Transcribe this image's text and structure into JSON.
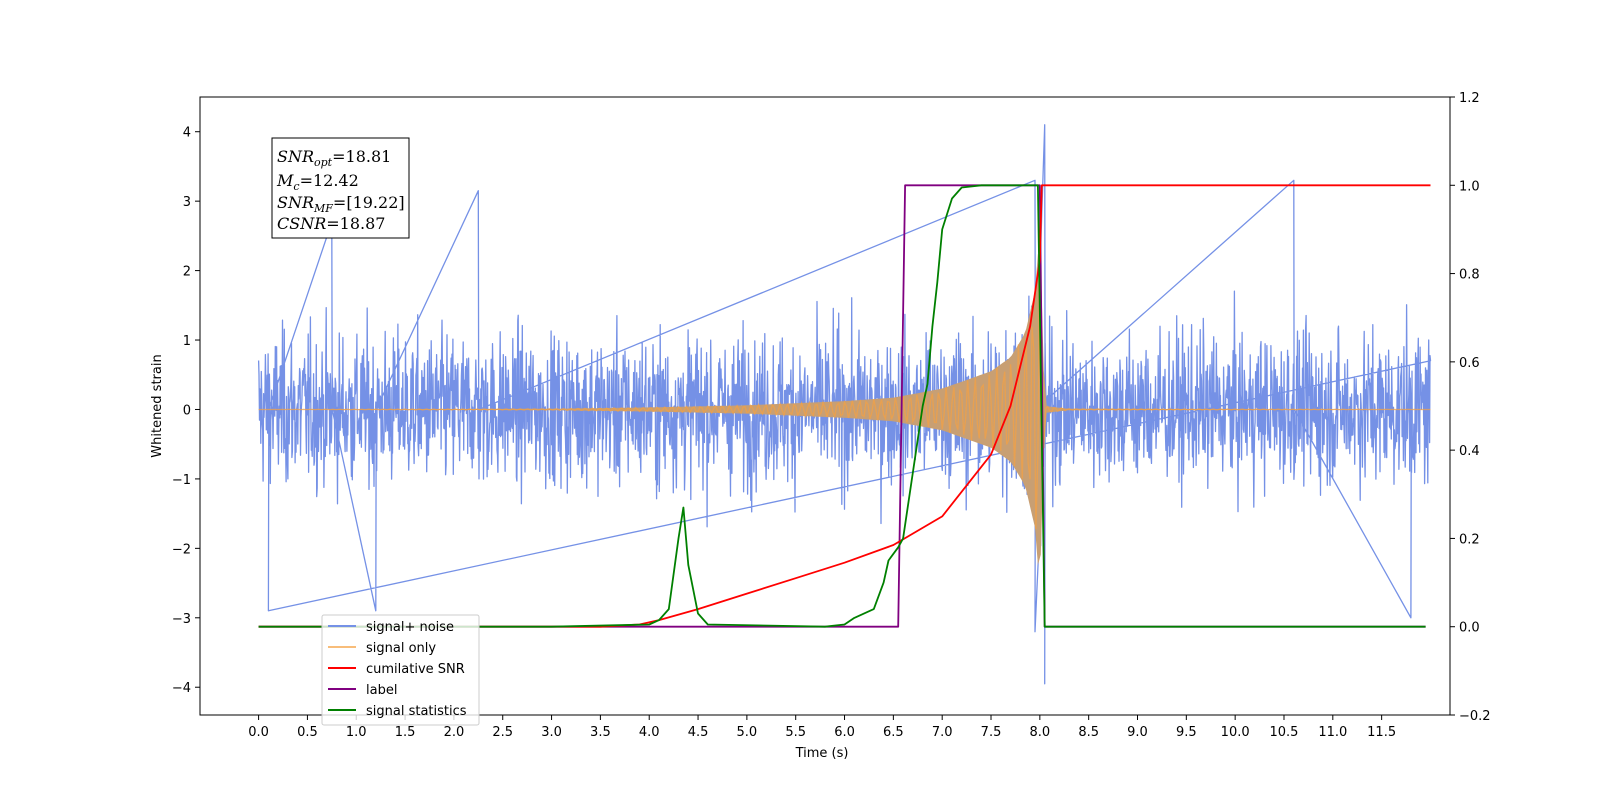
{
  "chart_data": {
    "type": "line",
    "xlabel": "Time (s)",
    "ylabel_left": "Whitened strain",
    "ylabel_right": "",
    "xlim": [
      -0.6,
      12.2
    ],
    "ylim_left": [
      -4.4,
      4.5
    ],
    "ylim_right": [
      -0.2,
      1.2
    ],
    "x_ticks": [
      "0.0",
      "0.5",
      "1.0",
      "1.5",
      "2.0",
      "2.5",
      "3.0",
      "3.5",
      "4.0",
      "4.5",
      "5.0",
      "5.5",
      "6.0",
      "6.5",
      "7.0",
      "7.5",
      "8.0",
      "8.5",
      "9.0",
      "9.5",
      "10.0",
      "10.5",
      "11.0",
      "11.5"
    ],
    "y_ticks_left": [
      "4",
      "3",
      "2",
      "1",
      "0",
      "−1",
      "−2",
      "−3",
      "−4"
    ],
    "y_ticks_right": [
      "1.2",
      "1.0",
      "0.8",
      "0.6",
      "0.4",
      "0.2",
      "0.0",
      "−0.2"
    ],
    "grid": false,
    "legend_position": "bottom-left",
    "colors": {
      "signal_noise": "#7591e6",
      "signal_only": "#f5a142",
      "signal_only_fill": "#c89f73",
      "cumulative_snr": "#ff0000",
      "label": "#800080",
      "signal_statistics": "#008000"
    },
    "annotation": {
      "snr_opt": {
        "symbol": "SNR",
        "sub": "opt",
        "text": "=18.81"
      },
      "mc": {
        "symbol": "M",
        "sub": "c",
        "text": "=12.42"
      },
      "snr_mf": {
        "symbol": "SNR",
        "sub": "MF",
        "text": "=[19.22]"
      },
      "csnr": {
        "symbol": "CSNR",
        "sub": "",
        "text": "=18.87"
      }
    },
    "legend_entries": [
      "signal+ noise",
      "signal only",
      "cumilative SNR",
      "label",
      "signal statistics"
    ],
    "series": [
      {
        "name": "signal+ noise",
        "axis": "left",
        "kind": "noise",
        "x_range": [
          0.0,
          12.0
        ],
        "band": [
          -2.4,
          2.6
        ],
        "extremes": [
          [
            0.1,
            -2.9
          ],
          [
            0.75,
            2.7
          ],
          [
            1.2,
            -2.9
          ],
          [
            2.25,
            3.15
          ],
          [
            7.95,
            3.3
          ],
          [
            8.05,
            4.1
          ],
          [
            8.05,
            -3.95
          ],
          [
            7.95,
            -3.2
          ],
          [
            10.6,
            3.3
          ],
          [
            11.8,
            -3.0
          ]
        ]
      },
      {
        "name": "signal only",
        "axis": "left",
        "kind": "chirp_envelope",
        "points": [
          [
            0.0,
            0.0
          ],
          [
            3.0,
            0.01
          ],
          [
            4.0,
            0.03
          ],
          [
            5.0,
            0.06
          ],
          [
            6.0,
            0.12
          ],
          [
            6.5,
            0.17
          ],
          [
            7.0,
            0.3
          ],
          [
            7.5,
            0.55
          ],
          [
            7.7,
            0.75
          ],
          [
            7.85,
            1.1
          ],
          [
            7.95,
            1.7
          ],
          [
            8.0,
            2.6
          ],
          [
            8.05,
            0.05
          ],
          [
            8.3,
            0.01
          ],
          [
            12.0,
            0.0
          ]
        ]
      },
      {
        "name": "cumilative SNR",
        "axis": "right",
        "points": [
          [
            0.0,
            0.0
          ],
          [
            3.5,
            0.0
          ],
          [
            3.9,
            0.005
          ],
          [
            4.1,
            0.015
          ],
          [
            4.5,
            0.04
          ],
          [
            5.0,
            0.075
          ],
          [
            5.5,
            0.11
          ],
          [
            6.0,
            0.145
          ],
          [
            6.5,
            0.185
          ],
          [
            7.0,
            0.25
          ],
          [
            7.5,
            0.39
          ],
          [
            7.7,
            0.5
          ],
          [
            7.9,
            0.68
          ],
          [
            8.0,
            0.83
          ],
          [
            8.02,
            1.0
          ],
          [
            12.0,
            1.0
          ]
        ]
      },
      {
        "name": "label",
        "axis": "right",
        "points": [
          [
            0.0,
            0.0
          ],
          [
            6.55,
            0.0
          ],
          [
            6.62,
            1.0
          ],
          [
            8.0,
            1.0
          ],
          [
            8.05,
            0.0
          ],
          [
            11.95,
            0.0
          ]
        ]
      },
      {
        "name": "signal statistics",
        "axis": "right",
        "points": [
          [
            0.0,
            0.0
          ],
          [
            3.0,
            0.0
          ],
          [
            4.0,
            0.005
          ],
          [
            4.1,
            0.015
          ],
          [
            4.2,
            0.04
          ],
          [
            4.3,
            0.2
          ],
          [
            4.35,
            0.27
          ],
          [
            4.4,
            0.14
          ],
          [
            4.5,
            0.03
          ],
          [
            4.6,
            0.005
          ],
          [
            5.8,
            0.0
          ],
          [
            6.0,
            0.005
          ],
          [
            6.1,
            0.02
          ],
          [
            6.3,
            0.04
          ],
          [
            6.4,
            0.1
          ],
          [
            6.45,
            0.15
          ],
          [
            6.55,
            0.18
          ],
          [
            6.6,
            0.2
          ],
          [
            6.7,
            0.35
          ],
          [
            6.8,
            0.5
          ],
          [
            6.85,
            0.55
          ],
          [
            6.9,
            0.68
          ],
          [
            6.95,
            0.78
          ],
          [
            7.0,
            0.9
          ],
          [
            7.1,
            0.97
          ],
          [
            7.2,
            0.995
          ],
          [
            7.4,
            1.0
          ],
          [
            7.98,
            1.0
          ],
          [
            8.05,
            0.0
          ],
          [
            11.95,
            0.0
          ]
        ]
      }
    ]
  }
}
